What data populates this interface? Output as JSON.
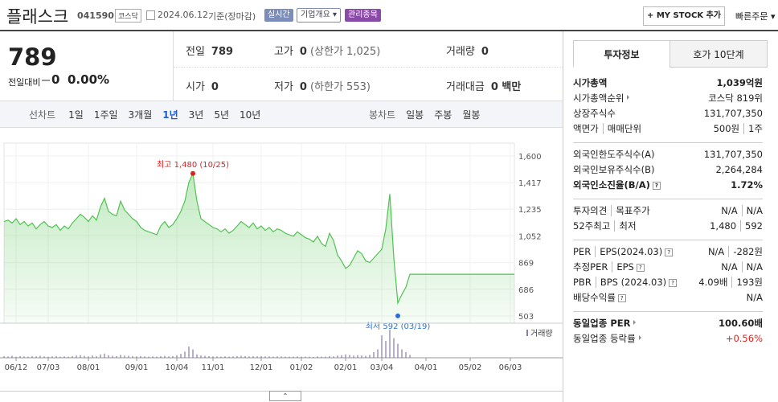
{
  "header": {
    "name": "플래스크",
    "code": "041590",
    "market": "코스닥",
    "date": "2024.06.12",
    "basis": "기준(장마감)",
    "badges": [
      "실시간",
      "기업개요",
      "관리종목"
    ],
    "mystock": "MY STOCK 추가",
    "quick_order": "빠른주문"
  },
  "price": {
    "current": "789",
    "change_label": "전일대비",
    "change": "0",
    "change_rate": "0.00%"
  },
  "summary": [
    [
      {
        "label": "전일",
        "value": "789"
      },
      {
        "label": "고가",
        "value": "0",
        "note": "(상한가 1,025)"
      },
      {
        "label": "거래량",
        "value": "0"
      }
    ],
    [
      {
        "label": "시가",
        "value": "0"
      },
      {
        "label": "저가",
        "value": "0",
        "note": "(하한가 553)"
      },
      {
        "label": "거래대금",
        "value": "0 백만"
      }
    ]
  ],
  "periods": {
    "line_label": "선차트",
    "line": [
      "1일",
      "1주일",
      "3개월",
      "1년",
      "3년",
      "5년",
      "10년"
    ],
    "selected": 3,
    "candle_label": "봉차트",
    "candle": [
      "일봉",
      "주봉",
      "월봉"
    ]
  },
  "chart_data": {
    "type": "line",
    "categories": [
      null,
      null,
      null,
      "06/12",
      null,
      null,
      null,
      null,
      null,
      null,
      null,
      "07/03",
      null,
      null,
      null,
      null,
      null,
      null,
      null,
      null,
      null,
      "08/01",
      null,
      null,
      null,
      null,
      null,
      null,
      null,
      null,
      null,
      null,
      null,
      "09/01",
      null,
      null,
      null,
      null,
      null,
      null,
      null,
      null,
      null,
      "10/04",
      null,
      null,
      null,
      null,
      null,
      null,
      null,
      null,
      "11/01",
      null,
      null,
      null,
      null,
      null,
      null,
      null,
      null,
      null,
      null,
      null,
      "12/01",
      null,
      null,
      null,
      null,
      null,
      null,
      null,
      null,
      null,
      "01/02",
      null,
      null,
      null,
      null,
      null,
      null,
      null,
      null,
      null,
      null,
      "02/01",
      null,
      null,
      null,
      null,
      null,
      null,
      null,
      null,
      "03/04",
      null,
      null,
      null,
      null,
      null,
      null,
      null,
      null,
      null,
      null,
      "04/01",
      null,
      null,
      null,
      null,
      null,
      null,
      null,
      null,
      null,
      null,
      "05/02",
      null,
      null,
      null,
      null,
      null,
      null,
      null,
      null,
      null,
      "06/03",
      null
    ],
    "values": [
      1150,
      1160,
      1140,
      1170,
      1130,
      1150,
      1120,
      1140,
      1100,
      1130,
      1150,
      1120,
      1110,
      1130,
      1090,
      1120,
      1100,
      1140,
      1170,
      1200,
      1180,
      1150,
      1190,
      1160,
      1250,
      1310,
      1220,
      1200,
      1190,
      1290,
      1230,
      1200,
      1170,
      1150,
      1110,
      1090,
      1080,
      1070,
      1060,
      1120,
      1150,
      1110,
      1130,
      1170,
      1220,
      1290,
      1420,
      1480,
      1290,
      1170,
      1150,
      1130,
      1110,
      1100,
      1080,
      1100,
      1070,
      1090,
      1120,
      1150,
      1130,
      1110,
      1140,
      1100,
      1120,
      1090,
      1110,
      1080,
      1100,
      1090,
      1070,
      1060,
      1050,
      1080,
      1060,
      1040,
      1030,
      1010,
      1050,
      1000,
      980,
      1070,
      1020,
      920,
      880,
      830,
      850,
      900,
      950,
      930,
      880,
      870,
      900,
      930,
      960,
      1100,
      1340,
      900,
      592,
      650,
      700,
      789,
      789,
      789,
      789,
      789,
      789,
      789,
      789,
      789,
      789,
      789,
      789,
      789,
      789,
      789,
      789,
      789,
      789,
      789,
      789,
      789,
      789,
      789,
      789,
      789,
      789,
      789
    ],
    "volume": [
      6,
      5,
      7,
      4,
      6,
      5,
      4,
      6,
      5,
      7,
      5,
      4,
      5,
      6,
      4,
      5,
      4,
      6,
      8,
      9,
      7,
      5,
      8,
      6,
      12,
      15,
      9,
      7,
      6,
      10,
      8,
      7,
      6,
      5,
      6,
      5,
      4,
      5,
      4,
      6,
      7,
      5,
      6,
      9,
      14,
      22,
      40,
      30,
      12,
      8,
      7,
      6,
      5,
      5,
      4,
      5,
      4,
      5,
      6,
      7,
      6,
      5,
      6,
      5,
      6,
      5,
      5,
      4,
      5,
      5,
      4,
      4,
      4,
      5,
      4,
      4,
      4,
      3,
      5,
      4,
      4,
      6,
      5,
      8,
      9,
      12,
      10,
      8,
      9,
      8,
      7,
      10,
      20,
      30,
      80,
      60,
      100,
      70,
      50,
      30,
      20,
      10,
      0,
      0,
      0,
      0,
      0,
      0,
      0,
      0,
      0,
      0,
      0,
      0,
      0,
      0,
      0,
      0,
      0,
      0,
      0,
      0,
      0,
      0,
      0,
      0,
      0,
      0
    ],
    "ylim": [
      503,
      1600
    ],
    "yticks": [
      {
        "value": 1600,
        "label": "1,600"
      },
      {
        "value": 1417,
        "label": "1,417"
      },
      {
        "value": 1235,
        "label": "1,235"
      },
      {
        "value": 1052,
        "label": "1,052"
      },
      869,
      686,
      503
    ],
    "color": "#4fc34f",
    "high_label": "최고 1,480 (10/25)",
    "low_label": "최저 592 (03/19)",
    "volume_label": "거래량",
    "grid": true
  },
  "info": {
    "tabs": [
      "투자정보",
      "호가 10단계"
    ],
    "groups": [
      [
        {
          "label": [
            "시가총액"
          ],
          "value": [
            "1,039억원"
          ],
          "bold": true
        },
        {
          "label": [
            "시가총액순위"
          ],
          "value": [
            "코스닥 819위"
          ],
          "arrow": true
        },
        {
          "label": [
            "상장주식수"
          ],
          "value": [
            "131,707,350"
          ]
        },
        {
          "label": [
            "액면가",
            "매매단위"
          ],
          "value": [
            "500원",
            "1주"
          ]
        }
      ],
      [
        {
          "label": [
            "외국인한도주식수(A)"
          ],
          "value": [
            "131,707,350"
          ]
        },
        {
          "label": [
            "외국인보유주식수(B)"
          ],
          "value": [
            "2,264,284"
          ]
        },
        {
          "label": [
            "외국인소진율(B/A)"
          ],
          "value": [
            "1.72%"
          ],
          "bold": true,
          "help": true
        }
      ],
      [
        {
          "label": [
            "투자의견",
            "목표주가"
          ],
          "value": [
            "N/A",
            "N/A"
          ]
        },
        {
          "label": [
            "52주최고",
            "최저"
          ],
          "value": [
            "1,480",
            "592"
          ]
        }
      ],
      [
        {
          "label": [
            "PER",
            "EPS(2024.03)"
          ],
          "value": [
            "N/A",
            "-282원"
          ],
          "help": true
        },
        {
          "label": [
            "추정PER",
            "EPS"
          ],
          "value": [
            "N/A",
            "N/A"
          ],
          "help": true
        },
        {
          "label": [
            "PBR",
            "BPS (2024.03)"
          ],
          "value": [
            "4.09배",
            "193원"
          ],
          "help": true
        },
        {
          "label": [
            "배당수익률"
          ],
          "value": [
            "N/A"
          ],
          "help": true
        }
      ],
      [
        {
          "label": [
            "동일업종 PER"
          ],
          "value": [
            "100.60배"
          ],
          "bold": true,
          "arrow": true
        },
        {
          "label": [
            "동일업종 등락률"
          ],
          "value": [
            "+0.56%"
          ],
          "arrow": true,
          "red": true
        }
      ]
    ]
  }
}
